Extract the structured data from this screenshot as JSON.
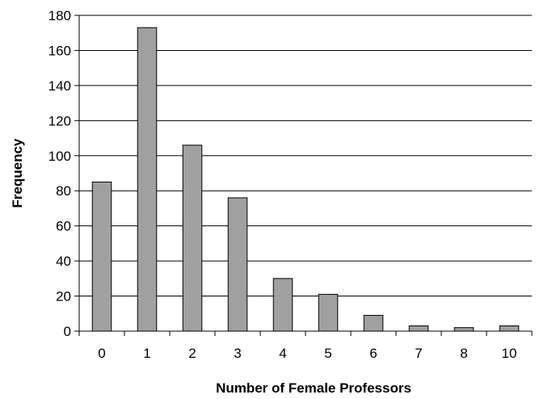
{
  "chart_data": {
    "type": "bar",
    "title": "",
    "xlabel": "Number of Female Professors",
    "ylabel": "Frequency",
    "categories": [
      "0",
      "1",
      "2",
      "3",
      "4",
      "5",
      "6",
      "7",
      "8",
      "10"
    ],
    "values": [
      85,
      173,
      106,
      76,
      30,
      21,
      9,
      3,
      2,
      3
    ],
    "ylim": [
      0,
      180
    ],
    "yticks": [
      0,
      20,
      40,
      60,
      80,
      100,
      120,
      140,
      160,
      180
    ],
    "grid": true,
    "legend": "none",
    "colors": {
      "bar_fill": "#a0a0a0",
      "bar_stroke": "#000000",
      "grid": "#000000"
    }
  }
}
